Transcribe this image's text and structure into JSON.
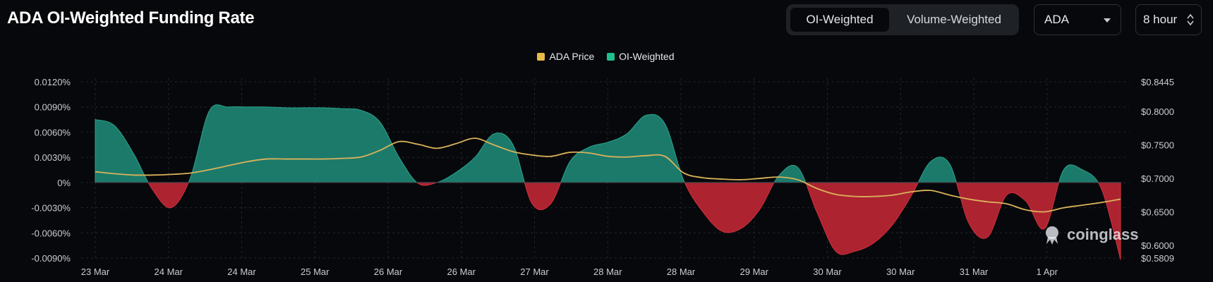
{
  "header": {
    "title": "ADA OI-Weighted Funding Rate",
    "mode_tabs": [
      "OI-Weighted",
      "Volume-Weighted"
    ],
    "active_tab": "OI-Weighted",
    "coin_select": "ADA",
    "interval_select": "8 hour"
  },
  "watermark": {
    "text": "coinglass"
  },
  "colors": {
    "positive_fill": "#1c7a6b",
    "positive_edge": "#2aa58e",
    "negative_fill": "#ad2330",
    "negative_edge": "#d0303f",
    "price_line": "#d9b35a",
    "legend_price": "#e7b948",
    "legend_oi": "#1fbf8f",
    "grid": "#23262c"
  },
  "chart_data": {
    "type": "area",
    "title": "ADA OI-Weighted Funding Rate",
    "legend": [
      "ADA Price",
      "OI-Weighted"
    ],
    "legend_position": "top-center",
    "grid": true,
    "x_tick_labels": [
      "23 Mar",
      "24 Mar",
      "24 Mar",
      "25 Mar",
      "26 Mar",
      "26 Mar",
      "27 Mar",
      "28 Mar",
      "28 Mar",
      "29 Mar",
      "30 Mar",
      "30 Mar",
      "31 Mar",
      "1 Apr"
    ],
    "y_left": {
      "label": "",
      "ticks": [
        "0.0120%",
        "0.0090%",
        "0.0060%",
        "0.0030%",
        "0%",
        "-0.0030%",
        "-0.0060%",
        "-0.0090%"
      ],
      "range_percent": [
        -0.009,
        0.012
      ]
    },
    "y_right": {
      "label": "",
      "ticks": [
        "$0.8445",
        "$0.8000",
        "$0.7500",
        "$0.7000",
        "$0.6500",
        "$0.6000",
        "$0.5809"
      ],
      "range_usd": [
        0.5809,
        0.8445
      ]
    },
    "series": [
      {
        "name": "OI-Weighted",
        "unit": "%",
        "values": [
          0.0075,
          0.0068,
          0.0035,
          -0.0008,
          -0.003,
          0.0005,
          0.0085,
          0.009,
          0.009,
          0.009,
          0.0089,
          0.0089,
          0.0089,
          0.0088,
          0.0086,
          0.0072,
          0.003,
          -0.0001,
          0.0,
          0.0012,
          0.003,
          0.0058,
          0.0045,
          -0.0025,
          -0.0025,
          0.0025,
          0.0042,
          0.0048,
          0.0058,
          0.008,
          0.007,
          0.0002,
          -0.0035,
          -0.0058,
          -0.0055,
          -0.0032,
          0.0008,
          0.0018,
          -0.0035,
          -0.0082,
          -0.0082,
          -0.0072,
          -0.005,
          -0.0015,
          0.0025,
          0.0022,
          -0.0048,
          -0.0065,
          -0.0015,
          -0.0022,
          -0.0055,
          0.0015,
          0.0015,
          -0.0008,
          -0.0092
        ]
      },
      {
        "name": "ADA Price",
        "unit": "USD",
        "values": [
          0.71,
          0.707,
          0.705,
          0.705,
          0.706,
          0.708,
          0.713,
          0.719,
          0.725,
          0.729,
          0.729,
          0.729,
          0.729,
          0.73,
          0.732,
          0.742,
          0.755,
          0.751,
          0.745,
          0.752,
          0.76,
          0.75,
          0.74,
          0.735,
          0.733,
          0.739,
          0.738,
          0.733,
          0.732,
          0.734,
          0.733,
          0.708,
          0.701,
          0.699,
          0.698,
          0.7,
          0.702,
          0.698,
          0.685,
          0.676,
          0.673,
          0.673,
          0.675,
          0.68,
          0.682,
          0.675,
          0.669,
          0.665,
          0.662,
          0.653,
          0.65,
          0.656,
          0.66,
          0.664,
          0.669
        ]
      }
    ]
  }
}
